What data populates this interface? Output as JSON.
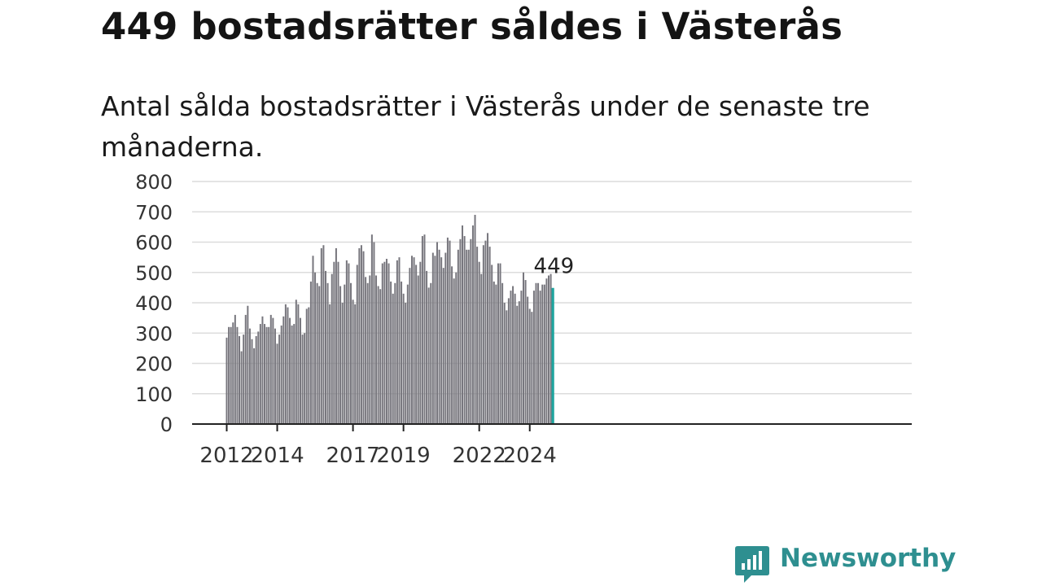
{
  "title": "449 bostadsrätter såldes i Västerås",
  "subtitle": "Antal sålda bostadsrätter i Västerås under de senaste tre månaderna.",
  "brand": {
    "name": "Newsworthy",
    "icon": "newsworthy-logo-icon",
    "color": "#2e8f90"
  },
  "colors": {
    "bar": "#77767d",
    "highlight": "#1ea59f",
    "grid": "#dcdcdc",
    "axis": "#222222"
  },
  "chart_data": {
    "type": "bar",
    "x_start": "2012-01",
    "interval": "month",
    "ylim": [
      0,
      800
    ],
    "yticks": [
      0,
      100,
      200,
      300,
      400,
      500,
      600,
      700,
      800
    ],
    "xticks": [
      "2012",
      "2014",
      "2017",
      "2019",
      "2022",
      "2024"
    ],
    "grid": true,
    "highlight_last": true,
    "last_value_label": "449",
    "values": [
      285,
      320,
      320,
      335,
      360,
      320,
      290,
      240,
      295,
      360,
      390,
      315,
      280,
      250,
      290,
      305,
      330,
      355,
      330,
      320,
      320,
      360,
      350,
      315,
      265,
      295,
      325,
      355,
      395,
      385,
      350,
      325,
      330,
      410,
      395,
      350,
      295,
      300,
      380,
      385,
      470,
      555,
      500,
      465,
      455,
      580,
      590,
      505,
      465,
      395,
      495,
      535,
      580,
      535,
      455,
      400,
      460,
      540,
      530,
      465,
      410,
      395,
      525,
      580,
      590,
      570,
      485,
      465,
      490,
      625,
      600,
      490,
      455,
      445,
      530,
      535,
      545,
      530,
      470,
      430,
      465,
      540,
      550,
      470,
      430,
      400,
      460,
      515,
      555,
      550,
      525,
      490,
      535,
      620,
      625,
      505,
      450,
      465,
      565,
      555,
      600,
      575,
      550,
      515,
      565,
      615,
      605,
      520,
      480,
      500,
      575,
      610,
      655,
      620,
      575,
      575,
      610,
      655,
      690,
      585,
      535,
      495,
      590,
      605,
      630,
      585,
      525,
      470,
      460,
      530,
      530,
      465,
      400,
      375,
      415,
      440,
      455,
      430,
      390,
      405,
      440,
      500,
      475,
      420,
      380,
      370,
      440,
      465,
      465,
      440,
      460,
      460,
      480,
      490,
      495,
      449
    ]
  }
}
